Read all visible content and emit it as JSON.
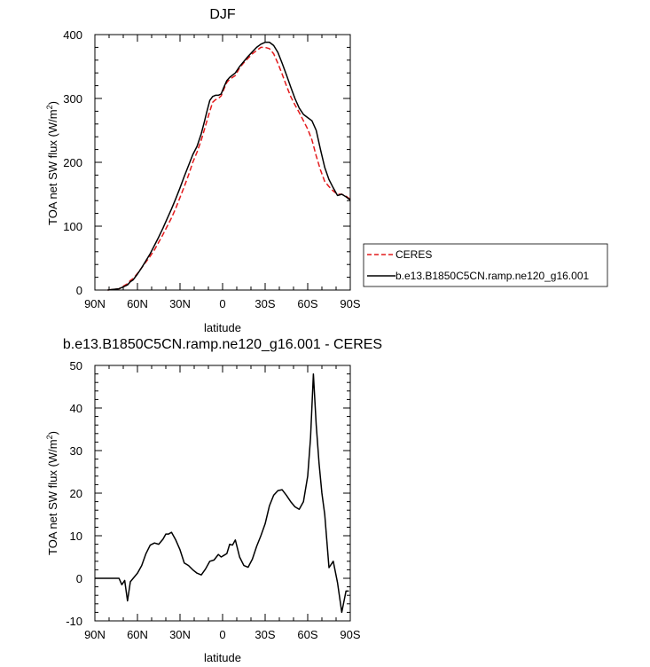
{
  "chart_data": [
    {
      "type": "line",
      "title": "DJF",
      "xlabel": "latitude",
      "ylabel": "TOA net SW flux (W/m",
      "ylabel_sup": "2",
      "ylabel_close": ")",
      "xlim": [
        90,
        -90
      ],
      "ylim": [
        0,
        400
      ],
      "xticks": [
        90,
        60,
        30,
        0,
        -30,
        -60,
        -90
      ],
      "xtick_labels": [
        "90N",
        "60N",
        "30N",
        "0",
        "30S",
        "60S",
        "90S"
      ],
      "yticks": [
        0,
        100,
        200,
        300,
        400
      ],
      "ytick_labels": [
        "0",
        "100",
        "200",
        "300",
        "400"
      ],
      "legend": "right",
      "series": [
        {
          "name": "CERES",
          "color": "#e31a1c",
          "dash": "dashed",
          "x": [
            81,
            77,
            73,
            70,
            67,
            65,
            63,
            60,
            57,
            54,
            51,
            48,
            45,
            42,
            39,
            36,
            33,
            30,
            27,
            24,
            21,
            18,
            15,
            13,
            11,
            9,
            7,
            5,
            3,
            1,
            -1,
            -3,
            -5,
            -9,
            -12,
            -15,
            -18,
            -21,
            -24,
            -27,
            -30,
            -33,
            -36,
            -39,
            -42,
            -45,
            -48,
            -51,
            -54,
            -57,
            -60,
            -63,
            -66,
            -69,
            -72,
            -75,
            -78,
            -81,
            -84,
            -87,
            -90
          ],
          "y": [
            0,
            1,
            2,
            6,
            10,
            15,
            18,
            26,
            35,
            44,
            53,
            63,
            75,
            87,
            100,
            113,
            128,
            145,
            162,
            180,
            200,
            216,
            235,
            250,
            265,
            280,
            294,
            298,
            300,
            304,
            315,
            325,
            330,
            336,
            348,
            356,
            363,
            370,
            375,
            380,
            380,
            378,
            370,
            355,
            338,
            320,
            303,
            290,
            278,
            265,
            252,
            235,
            210,
            188,
            170,
            162,
            155,
            150,
            150,
            147,
            142
          ]
        },
        {
          "name": "b.e13.B1850C5CN.ramp.ne120_g16.001",
          "color": "#000000",
          "dash": "solid",
          "x": [
            81,
            77,
            73,
            70,
            67,
            65,
            63,
            60,
            57,
            54,
            51,
            48,
            45,
            42,
            39,
            36,
            33,
            30,
            27,
            24,
            21,
            18,
            15,
            13,
            11,
            9,
            7,
            5,
            3,
            1,
            -1,
            -3,
            -5,
            -9,
            -12,
            -15,
            -18,
            -21,
            -24,
            -27,
            -30,
            -33,
            -36,
            -39,
            -42,
            -45,
            -48,
            -51,
            -54,
            -57,
            -60,
            -63,
            -66,
            -69,
            -72,
            -75,
            -78,
            -81,
            -84,
            -87,
            -90
          ],
          "y": [
            0,
            1,
            2,
            5,
            8,
            13,
            16,
            25,
            35,
            46,
            57,
            70,
            83,
            97,
            112,
            127,
            143,
            160,
            178,
            195,
            212,
            225,
            245,
            262,
            280,
            297,
            303,
            305,
            305,
            307,
            318,
            328,
            333,
            340,
            350,
            358,
            366,
            373,
            380,
            385,
            388,
            388,
            383,
            372,
            355,
            337,
            318,
            300,
            285,
            275,
            270,
            265,
            250,
            220,
            192,
            173,
            160,
            148,
            150,
            146,
            141
          ]
        }
      ]
    },
    {
      "type": "line",
      "title": "b.e13.B1850C5CN.ramp.ne120_g16.001 - CERES",
      "xlabel": "latitude",
      "ylabel": "TOA net SW flux (W/m",
      "ylabel_sup": "2",
      "ylabel_close": ")",
      "xlim": [
        90,
        -90
      ],
      "ylim": [
        -10,
        50
      ],
      "xticks": [
        90,
        60,
        30,
        0,
        -30,
        -60,
        -90
      ],
      "xtick_labels": [
        "90N",
        "60N",
        "30N",
        "0",
        "30S",
        "60S",
        "90S"
      ],
      "yticks": [
        -10,
        0,
        10,
        20,
        30,
        40,
        50
      ],
      "ytick_labels": [
        "-10",
        "0",
        "10",
        "20",
        "30",
        "40",
        "50"
      ],
      "series": [
        {
          "color": "#000000",
          "dash": "solid",
          "x": [
            90,
            85,
            80,
            76,
            73,
            71,
            69,
            67,
            65,
            63,
            60,
            57,
            54,
            51,
            48,
            45,
            42,
            40,
            38,
            36,
            33,
            30,
            27,
            24,
            21,
            18,
            15,
            12,
            9,
            6,
            3,
            1,
            -1,
            -3,
            -5,
            -7,
            -9,
            -12,
            -15,
            -18,
            -21,
            -24,
            -27,
            -30,
            -33,
            -36,
            -39,
            -42,
            -45,
            -48,
            -51,
            -54,
            -57,
            -60,
            -62,
            -64,
            -66,
            -68,
            -70,
            -72,
            -75,
            -78,
            -81,
            -84,
            -87,
            -89
          ],
          "y": [
            0,
            0,
            0,
            0,
            0,
            -1.5,
            -0.5,
            -5.3,
            -0.8,
            0,
            1.2,
            3,
            5.8,
            7.8,
            8.3,
            8,
            9.2,
            10.4,
            10.4,
            10.8,
            9,
            6.7,
            3.6,
            3,
            2,
            1.2,
            0.8,
            2.2,
            4,
            4.3,
            5.6,
            5,
            5.4,
            5.8,
            8,
            7.8,
            9,
            5,
            3,
            2.6,
            4.5,
            7.5,
            10,
            12.8,
            17,
            19.5,
            20.6,
            20.8,
            19.5,
            18,
            16.8,
            16.2,
            18,
            24,
            33,
            48,
            36,
            27,
            20,
            15,
            2.5,
            4,
            -1,
            -8,
            -3,
            -3
          ]
        }
      ]
    }
  ]
}
